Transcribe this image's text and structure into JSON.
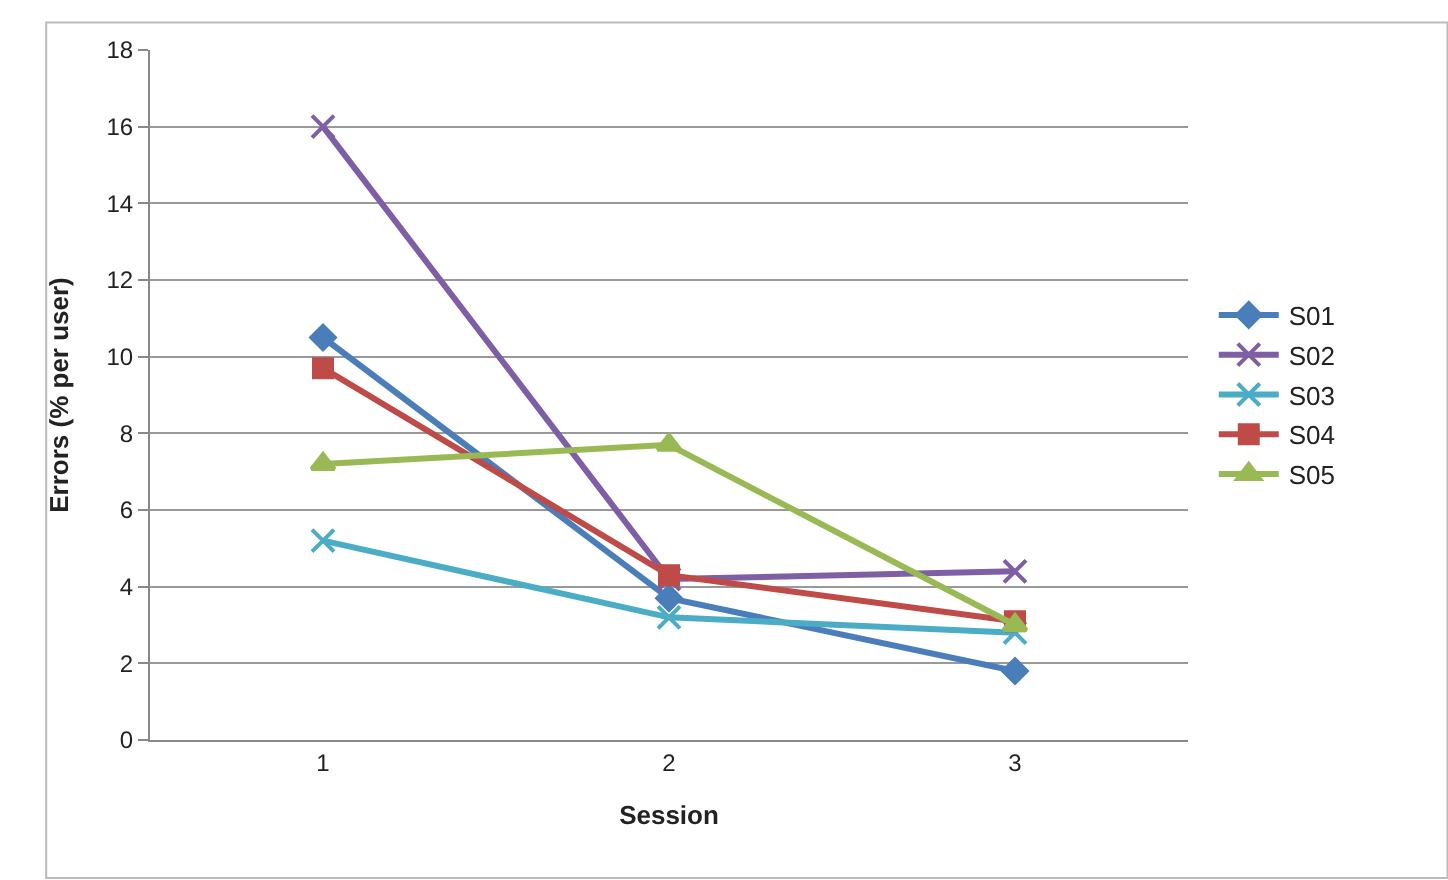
{
  "chart_data": {
    "type": "line",
    "xlabel": "Session",
    "ylabel": "Errors (% per user)",
    "categories": [
      "1",
      "2",
      "3"
    ],
    "ylim": [
      0,
      18
    ],
    "yticks": [
      0,
      2,
      4,
      6,
      8,
      10,
      12,
      14,
      16,
      18
    ],
    "grid": "y",
    "legend": "right",
    "series": [
      {
        "name": "S01",
        "color": "#4a7ebb",
        "marker": "diamond",
        "values": [
          10.5,
          3.7,
          1.8
        ]
      },
      {
        "name": "S02",
        "color": "#7e5fa6",
        "marker": "cross",
        "values": [
          16.0,
          4.2,
          4.4
        ]
      },
      {
        "name": "S03",
        "color": "#4bacc6",
        "marker": "cross",
        "values": [
          5.2,
          3.2,
          2.8
        ]
      },
      {
        "name": "S04",
        "color": "#be4b48",
        "marker": "square",
        "values": [
          9.7,
          4.3,
          3.1
        ]
      },
      {
        "name": "S05",
        "color": "#98b954",
        "marker": "triangle",
        "values": [
          7.2,
          7.7,
          3.0
        ]
      }
    ]
  }
}
